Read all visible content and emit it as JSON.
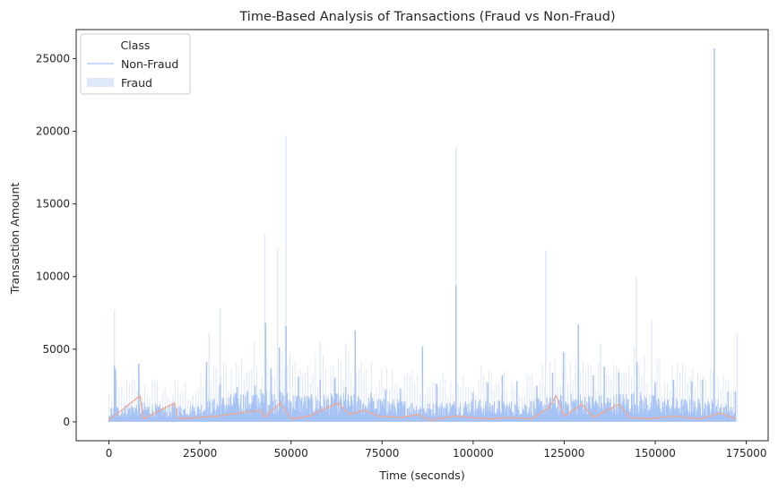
{
  "chart_data": {
    "type": "line",
    "title": "Time-Based Analysis of Transactions (Fraud vs Non-Fraud)",
    "xlabel": "Time (seconds)",
    "ylabel": "Transaction Amount",
    "xlim": [
      -9000,
      181000
    ],
    "ylim": [
      -1300,
      27000
    ],
    "xticks": [
      0,
      25000,
      50000,
      75000,
      100000,
      125000,
      150000,
      175000
    ],
    "yticks": [
      0,
      5000,
      10000,
      15000,
      20000,
      25000
    ],
    "grid": false,
    "legend": {
      "title": "Class",
      "placement": "top-left",
      "entries": [
        "Non-Fraud",
        "Fraud"
      ]
    },
    "series": [
      {
        "name": "Non-Fraud",
        "color": "#a7c2f5",
        "style": "line",
        "points": [
          [
            0,
            150
          ],
          [
            1500,
            3900
          ],
          [
            1800,
            3600
          ],
          [
            8200,
            4000
          ],
          [
            17500,
            1300
          ],
          [
            26800,
            4100
          ],
          [
            30500,
            2600
          ],
          [
            35200,
            2400
          ],
          [
            40100,
            2500
          ],
          [
            43000,
            6800
          ],
          [
            44500,
            3700
          ],
          [
            46800,
            5100
          ],
          [
            48600,
            6600
          ],
          [
            52000,
            3100
          ],
          [
            58000,
            2900
          ],
          [
            62000,
            3000
          ],
          [
            65000,
            2400
          ],
          [
            67600,
            6300
          ],
          [
            72000,
            2000
          ],
          [
            76000,
            2200
          ],
          [
            80000,
            2300
          ],
          [
            86100,
            5200
          ],
          [
            90000,
            2600
          ],
          [
            95300,
            9400
          ],
          [
            100000,
            2000
          ],
          [
            104000,
            2700
          ],
          [
            108000,
            3200
          ],
          [
            112000,
            2800
          ],
          [
            117500,
            2500
          ],
          [
            121800,
            3400
          ],
          [
            124800,
            4800
          ],
          [
            128900,
            6700
          ],
          [
            133000,
            3200
          ],
          [
            136000,
            3800
          ],
          [
            140000,
            3400
          ],
          [
            145000,
            4100
          ],
          [
            150000,
            2700
          ],
          [
            155000,
            2900
          ],
          [
            160000,
            2800
          ],
          [
            163000,
            2900
          ],
          [
            166200,
            25700
          ],
          [
            170000,
            2100
          ],
          [
            172000,
            2100
          ]
        ],
        "band_values": [
          [
            0,
            700
          ],
          [
            8000,
            1000
          ],
          [
            16000,
            800
          ],
          [
            24000,
            900
          ],
          [
            32000,
            1300
          ],
          [
            40000,
            1600
          ],
          [
            48000,
            1500
          ],
          [
            56000,
            1300
          ],
          [
            64000,
            1400
          ],
          [
            72000,
            1200
          ],
          [
            80000,
            1100
          ],
          [
            88000,
            900
          ],
          [
            96000,
            1100
          ],
          [
            104000,
            1100
          ],
          [
            112000,
            1000
          ],
          [
            120000,
            1200
          ],
          [
            128000,
            1400
          ],
          [
            136000,
            1300
          ],
          [
            144000,
            1500
          ],
          [
            152000,
            1200
          ],
          [
            160000,
            1100
          ],
          [
            168000,
            1100
          ],
          [
            172000,
            600
          ]
        ]
      },
      {
        "name": "Fraud",
        "color": "#dfe8f8",
        "style": "band",
        "spikes": [
          [
            1500,
            7700
          ],
          [
            27500,
            6100
          ],
          [
            30500,
            7800
          ],
          [
            42800,
            12900
          ],
          [
            46300,
            11900
          ],
          [
            48600,
            19700
          ],
          [
            58000,
            5500
          ],
          [
            65000,
            5300
          ],
          [
            95300,
            18900
          ],
          [
            119900,
            11800
          ],
          [
            135000,
            5400
          ],
          [
            144800,
            10000
          ],
          [
            149000,
            7000
          ],
          [
            172500,
            6100
          ]
        ]
      },
      {
        "name": "",
        "color": "#eea88f",
        "style": "line",
        "points": [
          [
            0,
            100
          ],
          [
            8500,
            1800
          ],
          [
            9500,
            200
          ],
          [
            18000,
            1300
          ],
          [
            19000,
            200
          ],
          [
            30000,
            400
          ],
          [
            41500,
            800
          ],
          [
            43000,
            300
          ],
          [
            44000,
            600
          ],
          [
            47000,
            1300
          ],
          [
            50000,
            200
          ],
          [
            55000,
            400
          ],
          [
            63000,
            1300
          ],
          [
            66000,
            500
          ],
          [
            70000,
            800
          ],
          [
            74000,
            400
          ],
          [
            80000,
            300
          ],
          [
            85000,
            500
          ],
          [
            88000,
            100
          ],
          [
            95000,
            400
          ],
          [
            104000,
            200
          ],
          [
            110000,
            300
          ],
          [
            116000,
            200
          ],
          [
            121000,
            1000
          ],
          [
            122800,
            1800
          ],
          [
            125000,
            400
          ],
          [
            130000,
            1200
          ],
          [
            133000,
            300
          ],
          [
            140000,
            1200
          ],
          [
            143000,
            300
          ],
          [
            148000,
            200
          ],
          [
            155000,
            400
          ],
          [
            162000,
            200
          ],
          [
            166500,
            500
          ],
          [
            168000,
            600
          ],
          [
            172000,
            200
          ]
        ]
      }
    ]
  }
}
